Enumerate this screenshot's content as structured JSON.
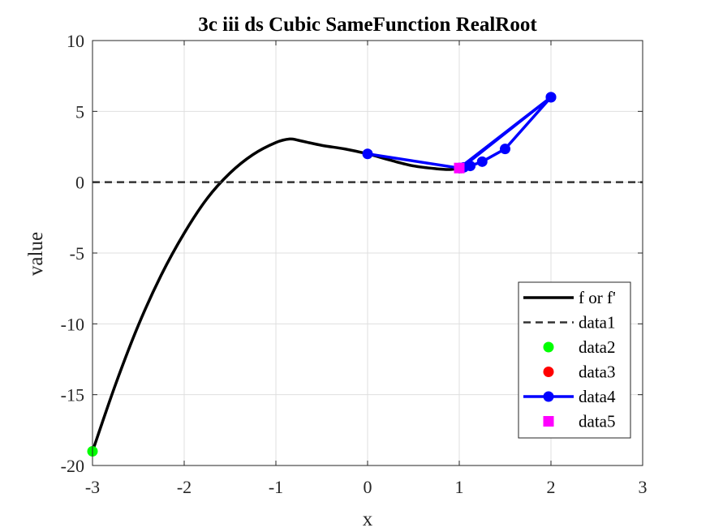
{
  "chart_data": {
    "type": "line",
    "title": "3c iii ds Cubic SameFunction RealRoot",
    "xlabel": "x",
    "ylabel": "value",
    "xlim": [
      -3,
      3
    ],
    "ylim": [
      -20,
      10
    ],
    "xticks": [
      -3,
      -2,
      -1,
      0,
      1,
      2,
      3
    ],
    "yticks": [
      -20,
      -15,
      -10,
      -5,
      0,
      5,
      10
    ],
    "xtick_labels": [
      "-3",
      "-2",
      "-1",
      "0",
      "1",
      "2",
      "3"
    ],
    "ytick_labels": [
      "-20",
      "-15",
      "-10",
      "-5",
      "0",
      "5",
      "10"
    ],
    "grid": true,
    "legend_position": "bottom-right",
    "series": [
      {
        "name": "f or f'",
        "style": "solid",
        "color": "#000000",
        "x": [
          -3,
          -2.75,
          -2.5,
          -2.25,
          -2,
          -1.75,
          -1.5,
          -1.25,
          -1,
          -0.85,
          -0.75,
          -0.5,
          -0.25,
          0,
          0.25,
          0.5,
          0.75,
          0.9,
          1
        ],
        "y": [
          -19,
          -14.3,
          -10.1,
          -6.55,
          -3.6,
          -1.15,
          0.65,
          1.95,
          2.8,
          3.05,
          2.95,
          2.6,
          2.35,
          2.0,
          1.55,
          1.15,
          0.95,
          0.9,
          1.0
        ]
      },
      {
        "name": "data1",
        "style": "dashed",
        "color": "#333333",
        "x": [
          -3,
          3
        ],
        "y": [
          0,
          0
        ]
      },
      {
        "name": "data2",
        "style": "marker",
        "marker": "circle",
        "color": "#00ff00",
        "x": [
          -3
        ],
        "y": [
          -19
        ]
      },
      {
        "name": "data3",
        "style": "marker",
        "marker": "circle",
        "color": "#ff0000",
        "x": [],
        "y": []
      },
      {
        "name": "data4",
        "style": "line-marker",
        "marker": "circle",
        "color": "#0000ff",
        "x": [
          0,
          1,
          2,
          1.5,
          1.25,
          1.12,
          1.05,
          1.02,
          2,
          1
        ],
        "y": [
          2,
          1,
          6,
          2.35,
          1.45,
          1.15,
          1.05,
          1.0,
          6,
          1
        ]
      },
      {
        "name": "data5",
        "style": "marker",
        "marker": "square",
        "color": "#ff00ff",
        "x": [
          1
        ],
        "y": [
          1
        ]
      }
    ]
  }
}
